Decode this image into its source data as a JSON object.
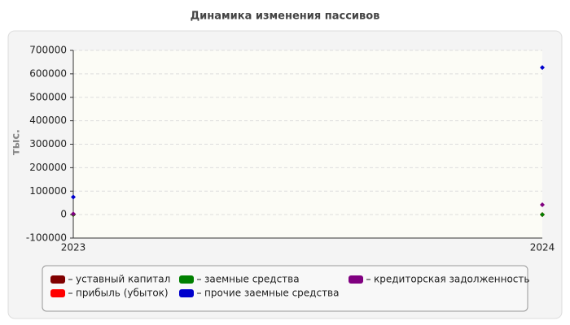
{
  "chart_data": {
    "type": "line",
    "title": "Динамика изменения пассивов",
    "y_label": "тыс.",
    "categories": [
      "2023",
      "2024"
    ],
    "series": [
      {
        "name": "уставный капитал",
        "color": "#800000",
        "values": [
          10,
          10
        ]
      },
      {
        "name": "прибыль (убыток)",
        "color": "#ff0000",
        "values": [
          0,
          0
        ]
      },
      {
        "name": "заемные средства",
        "color": "#008000",
        "values": [
          0,
          0
        ]
      },
      {
        "name": "прочие заемные средства",
        "color": "#0000cc",
        "values": [
          75000,
          627000
        ]
      },
      {
        "name": "кредиторская задолженность",
        "color": "#800080",
        "values": [
          3000,
          42000
        ]
      }
    ],
    "ylim": [
      -100000,
      700000
    ],
    "yticks": [
      -100000,
      0,
      100000,
      200000,
      300000,
      400000,
      500000,
      600000,
      700000
    ],
    "grid": true
  }
}
